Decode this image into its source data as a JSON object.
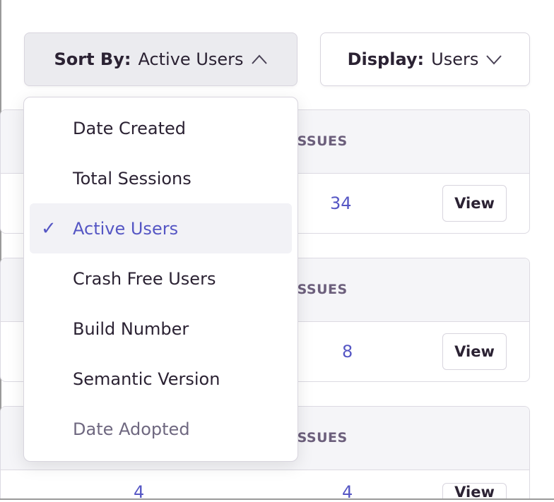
{
  "sort": {
    "label": "Sort By:",
    "value": "Active Users",
    "icon": "chevron-up-icon"
  },
  "display": {
    "label": "Display:",
    "value": "Users",
    "icon": "chevron-down-icon"
  },
  "menu": {
    "items": [
      {
        "label": "Date Created"
      },
      {
        "label": "Total Sessions"
      },
      {
        "label": "Active Users",
        "selected": true
      },
      {
        "label": "Crash Free Users"
      },
      {
        "label": "Build Number"
      },
      {
        "label": "Semantic Version"
      },
      {
        "label": "Date Adopted",
        "disabled": true
      }
    ]
  },
  "cards": [
    {
      "header": "ISSUES",
      "issues": "34",
      "view": "View"
    },
    {
      "header": "ISSUES",
      "issues": "8",
      "view": "View"
    },
    {
      "header": "ISSUES",
      "left": "4",
      "issues": "4",
      "view": "View"
    }
  ],
  "colors": {
    "accent": "#5556c4",
    "text": "#2b2233",
    "muted": "#6c5f7c"
  }
}
